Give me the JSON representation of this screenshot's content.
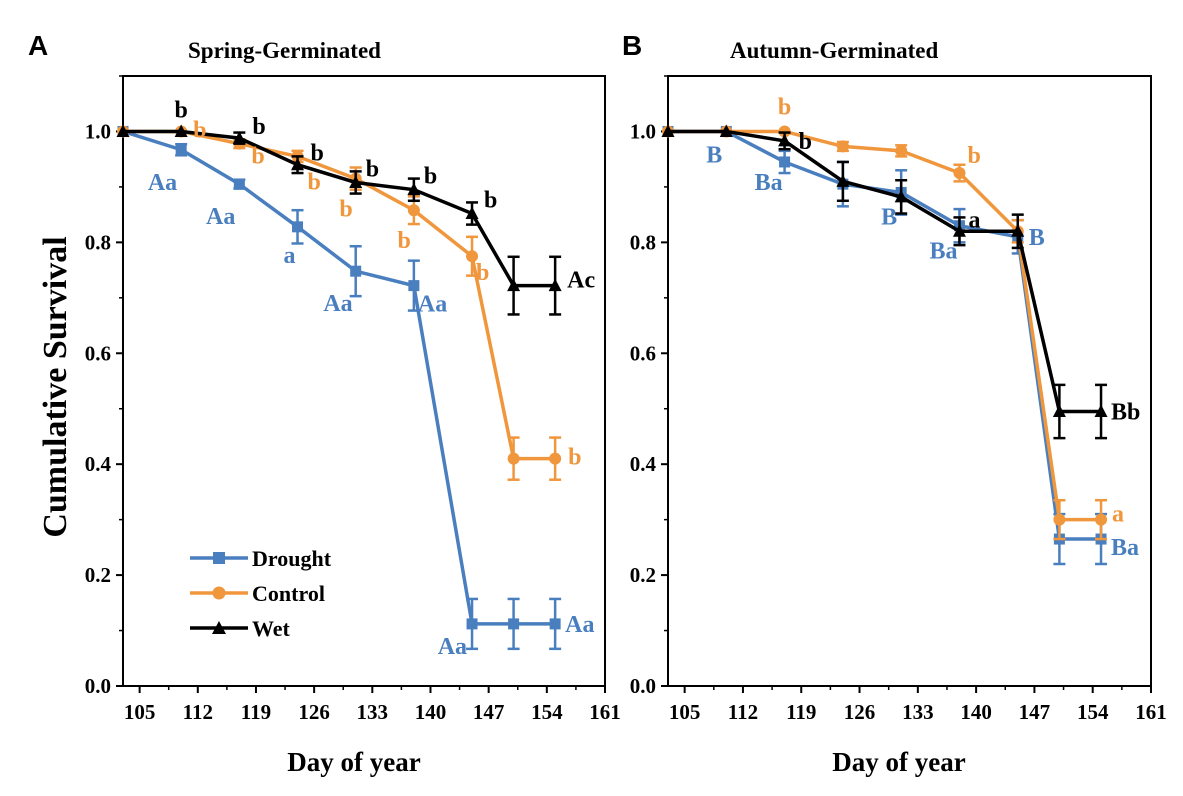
{
  "figure": {
    "ylabel": "Cumulative Survival"
  },
  "chart_data": [
    {
      "type": "line",
      "panel": "A",
      "title": "Spring-Germinated",
      "xlabel": "Day of year",
      "ylabel": "Cumulative Survival",
      "xlim": [
        103,
        161
      ],
      "ylim": [
        0.0,
        1.1
      ],
      "xticks": [
        "105",
        "112",
        "119",
        "126",
        "133",
        "140",
        "147",
        "154",
        "161"
      ],
      "yticks": [
        "0.0",
        "0.2",
        "0.4",
        "0.6",
        "0.8",
        "1.0"
      ],
      "legend": {
        "position": "lower-left",
        "entries": [
          "Drought",
          "Control",
          "Wet"
        ]
      },
      "series": [
        {
          "name": "Drought",
          "color": "#4a7fbf",
          "marker": "square",
          "x": [
            103,
            110,
            117,
            124,
            131,
            138,
            145,
            150,
            155
          ],
          "y": [
            1.0,
            0.967,
            0.905,
            0.828,
            0.748,
            0.722,
            0.112,
            0.112,
            0.112
          ],
          "err": [
            0,
            0.01,
            0.008,
            0.03,
            0.045,
            0.045,
            0.045,
            0.045,
            0.045
          ]
        },
        {
          "name": "Control",
          "color": "#f0963c",
          "marker": "circle",
          "x": [
            103,
            110,
            117,
            124,
            131,
            138,
            145,
            150,
            155
          ],
          "y": [
            1.0,
            1.0,
            0.978,
            0.955,
            0.915,
            0.858,
            0.775,
            0.41,
            0.41
          ],
          "err": [
            0,
            0,
            0.008,
            0.01,
            0.02,
            0.025,
            0.035,
            0.038,
            0.038
          ]
        },
        {
          "name": "Wet",
          "color": "#000000",
          "marker": "triangle",
          "x": [
            103,
            110,
            117,
            124,
            131,
            138,
            145,
            150,
            155
          ],
          "y": [
            1.0,
            1.0,
            0.988,
            0.94,
            0.908,
            0.895,
            0.852,
            0.722,
            0.722
          ],
          "err": [
            0,
            0,
            0.01,
            0.015,
            0.02,
            0.02,
            0.02,
            0.052,
            0.052
          ]
        }
      ],
      "annotations": [
        {
          "text": "b",
          "series": "Wet",
          "x": 110,
          "y": 1.0
        },
        {
          "text": "b",
          "series": "Wet",
          "x": 117,
          "y": 0.988
        },
        {
          "text": "b",
          "series": "Wet",
          "x": 124,
          "y": 0.94
        },
        {
          "text": "b",
          "series": "Wet",
          "x": 131,
          "y": 0.908
        },
        {
          "text": "b",
          "series": "Wet",
          "x": 138,
          "y": 0.895
        },
        {
          "text": "b",
          "series": "Wet",
          "x": 145,
          "y": 0.852
        },
        {
          "text": "Ac",
          "series": "Wet",
          "x": 155,
          "y": 0.722
        },
        {
          "text": "b",
          "series": "Control",
          "x": 110,
          "y": 1.0
        },
        {
          "text": "b",
          "series": "Control",
          "x": 117,
          "y": 0.978
        },
        {
          "text": "b",
          "series": "Control",
          "x": 124,
          "y": 0.955
        },
        {
          "text": "b",
          "series": "Control",
          "x": 131,
          "y": 0.915
        },
        {
          "text": "b",
          "series": "Control",
          "x": 138,
          "y": 0.858
        },
        {
          "text": "b",
          "series": "Control",
          "x": 145,
          "y": 0.775
        },
        {
          "text": "b",
          "series": "Control",
          "x": 155,
          "y": 0.41
        },
        {
          "text": "Aa",
          "series": "Drought",
          "x": 110,
          "y": 0.967
        },
        {
          "text": "Aa",
          "series": "Drought",
          "x": 117,
          "y": 0.905
        },
        {
          "text": "a",
          "series": "Drought",
          "x": 124,
          "y": 0.828
        },
        {
          "text": "Aa",
          "series": "Drought",
          "x": 131,
          "y": 0.748
        },
        {
          "text": "Aa",
          "series": "Drought",
          "x": 138,
          "y": 0.722
        },
        {
          "text": "Aa",
          "series": "Drought",
          "x": 145,
          "y": 0.112
        },
        {
          "text": "Aa",
          "series": "Drought",
          "x": 155,
          "y": 0.112
        }
      ]
    },
    {
      "type": "line",
      "panel": "B",
      "title": "Autumn-Germinated",
      "xlabel": "Day of year",
      "ylabel": "Cumulative Survival",
      "xlim": [
        103,
        161
      ],
      "ylim": [
        0.0,
        1.1
      ],
      "xticks": [
        "105",
        "112",
        "119",
        "126",
        "133",
        "140",
        "147",
        "154",
        "161"
      ],
      "yticks": [
        "0.0",
        "0.2",
        "0.4",
        "0.6",
        "0.8",
        "1.0"
      ],
      "series": [
        {
          "name": "Drought",
          "color": "#4a7fbf",
          "marker": "square",
          "x": [
            103,
            110,
            117,
            124,
            131,
            138,
            145,
            150,
            155
          ],
          "y": [
            1.0,
            1.0,
            0.945,
            0.905,
            0.89,
            0.83,
            0.81,
            0.265,
            0.265
          ],
          "err": [
            0,
            0,
            0.02,
            0.04,
            0.04,
            0.03,
            0.03,
            0.045,
            0.045
          ]
        },
        {
          "name": "Control",
          "color": "#f0963c",
          "marker": "circle",
          "x": [
            103,
            110,
            117,
            124,
            131,
            138,
            145,
            150,
            155
          ],
          "y": [
            1.0,
            1.0,
            1.0,
            0.973,
            0.965,
            0.925,
            0.82,
            0.3,
            0.3
          ],
          "err": [
            0,
            0,
            0,
            0.008,
            0.01,
            0.015,
            0.02,
            0.035,
            0.035
          ]
        },
        {
          "name": "Wet",
          "color": "#000000",
          "marker": "triangle",
          "x": [
            103,
            110,
            117,
            124,
            131,
            138,
            145,
            150,
            155
          ],
          "y": [
            1.0,
            1.0,
            0.983,
            0.91,
            0.882,
            0.82,
            0.82,
            0.495,
            0.495
          ],
          "err": [
            0,
            0,
            0.015,
            0.035,
            0.03,
            0.025,
            0.03,
            0.048,
            0.048
          ]
        }
      ],
      "annotations": [
        {
          "text": "b",
          "series": "Control",
          "x": 117,
          "y": 1.0
        },
        {
          "text": "b",
          "series": "Wet",
          "x": 117,
          "y": 0.983
        },
        {
          "text": "B",
          "series": "Drought",
          "x": 110,
          "y": 1.0
        },
        {
          "text": "Ba",
          "series": "Drought",
          "x": 117,
          "y": 0.945
        },
        {
          "text": "B",
          "series": "Drought",
          "x": 131,
          "y": 0.89
        },
        {
          "text": "b",
          "series": "Control",
          "x": 138,
          "y": 0.925
        },
        {
          "text": "a",
          "series": "Wet",
          "x": 138,
          "y": 0.82
        },
        {
          "text": "Ba",
          "series": "Drought",
          "x": 138,
          "y": 0.83
        },
        {
          "text": "B",
          "series": "Drought",
          "x": 145,
          "y": 0.81
        },
        {
          "text": "Bb",
          "series": "Wet",
          "x": 155,
          "y": 0.495
        },
        {
          "text": "a",
          "series": "Control",
          "x": 155,
          "y": 0.3
        },
        {
          "text": "Ba",
          "series": "Drought",
          "x": 155,
          "y": 0.265
        }
      ]
    }
  ]
}
